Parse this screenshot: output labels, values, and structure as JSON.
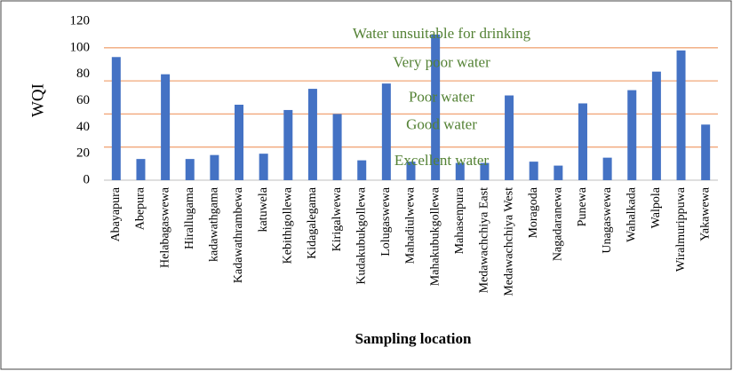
{
  "chart_data": {
    "type": "bar",
    "ylabel": "WQI",
    "xlabel": "Sampling location",
    "categories": [
      "Abayapura",
      "Abepura",
      "Helabagaswewa",
      "Hirallugama",
      "kadawathgama",
      "Kadawathrambewa",
      "katuwela",
      "Kebithigollewa",
      "Kidagalegama",
      "Kirigalwewa",
      "Kudakubukgollewa",
      "Lolugaswewa",
      "Mahadiulwewa",
      "Mahakubukgollewa",
      "Mahasenpura",
      "Medawachchiya East",
      "Medawachchiya West",
      "Moragoda",
      "Nagadaranewa",
      "Punewa",
      "Unagaswewa",
      "Wahalkada",
      "Walpola",
      "Wiralmurippuwa",
      "Yakawewa"
    ],
    "values": [
      93,
      16,
      80,
      16,
      19,
      57,
      20,
      53,
      69,
      50,
      15,
      73,
      14,
      110,
      13,
      13,
      64,
      14,
      11,
      58,
      17,
      68,
      82,
      98,
      42
    ],
    "color": "#4472c4",
    "ylim": [
      0,
      120
    ],
    "yticks": [
      0,
      20,
      40,
      60,
      80,
      100,
      120
    ],
    "thresholds": [
      25,
      50,
      75,
      100
    ],
    "threshold_color": "#f1a77a",
    "annotations": [
      {
        "text": "Water unsuitable for drinking",
        "y": 110
      },
      {
        "text": "Very poor water",
        "y": 88
      },
      {
        "text": "Poor water",
        "y": 62
      },
      {
        "text": "Good water",
        "y": 41
      },
      {
        "text": "Excellent water",
        "y": 14
      }
    ],
    "annotation_color": "#548235"
  }
}
